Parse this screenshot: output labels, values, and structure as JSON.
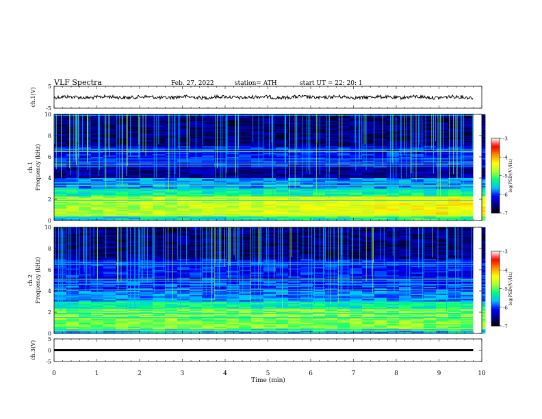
{
  "header": {
    "title": "VLF  Spectra",
    "date": "Feb. 27, 2022",
    "station": "station= ATH",
    "start": "start  UT  =    22: 20: 1"
  },
  "chart_data": [
    {
      "type": "line",
      "id": "ch1_voltage",
      "ylabel": "ch.1(V)",
      "xlim": [
        0,
        10
      ],
      "ylim": [
        -5,
        5
      ],
      "yticks": [
        "5",
        "-5"
      ],
      "description_values": {
        "mean": 0.0,
        "x_end": 9.8
      },
      "color": "#000000"
    },
    {
      "type": "heatmap",
      "id": "ch1_spectrogram",
      "ylabel": "ch.1\nFrequency  (kHz)",
      "xlim": [
        0,
        10
      ],
      "ylim": [
        0,
        10
      ],
      "yticks": [
        "0",
        "2",
        "4",
        "6",
        "8",
        "10"
      ],
      "colorbar": {
        "label": "log(PSD)(V²/Hz)",
        "range": [
          -7,
          -3
        ],
        "ticks": [
          "-3",
          "-4",
          "-5",
          "-6",
          "-7"
        ]
      }
    },
    {
      "type": "heatmap",
      "id": "ch2_spectrogram",
      "ylabel": "ch.2\nFrequency  (kHz)",
      "xlim": [
        0,
        10
      ],
      "ylim": [
        0,
        10
      ],
      "yticks": [
        "0",
        "2",
        "4",
        "6",
        "8",
        "10"
      ],
      "colorbar": {
        "label": "log(PSD)(V²/Hz)",
        "range": [
          -7,
          -3
        ],
        "ticks": [
          "-3",
          "-4",
          "-5",
          "-6",
          "-7"
        ]
      }
    },
    {
      "type": "line",
      "id": "ch3_voltage",
      "ylabel": "ch.3(V)",
      "xlim": [
        0,
        10
      ],
      "ylim": [
        -5,
        5
      ],
      "yticks": [
        "5",
        "0",
        "-5"
      ],
      "description_values": {
        "mean": 0.0,
        "x_end": 9.8
      },
      "color": "#000000"
    }
  ],
  "xaxis": {
    "label": "Time  (min)",
    "ticks": [
      "0",
      "1",
      "2",
      "3",
      "4",
      "5",
      "6",
      "7",
      "8",
      "9",
      "10"
    ]
  },
  "colors": {
    "colormap": [
      "#000000",
      "#00008b",
      "#0000ff",
      "#00bfff",
      "#00ff7f",
      "#adff2f",
      "#ffff00",
      "#ff8c00",
      "#ff0000",
      "#ffffff"
    ]
  }
}
